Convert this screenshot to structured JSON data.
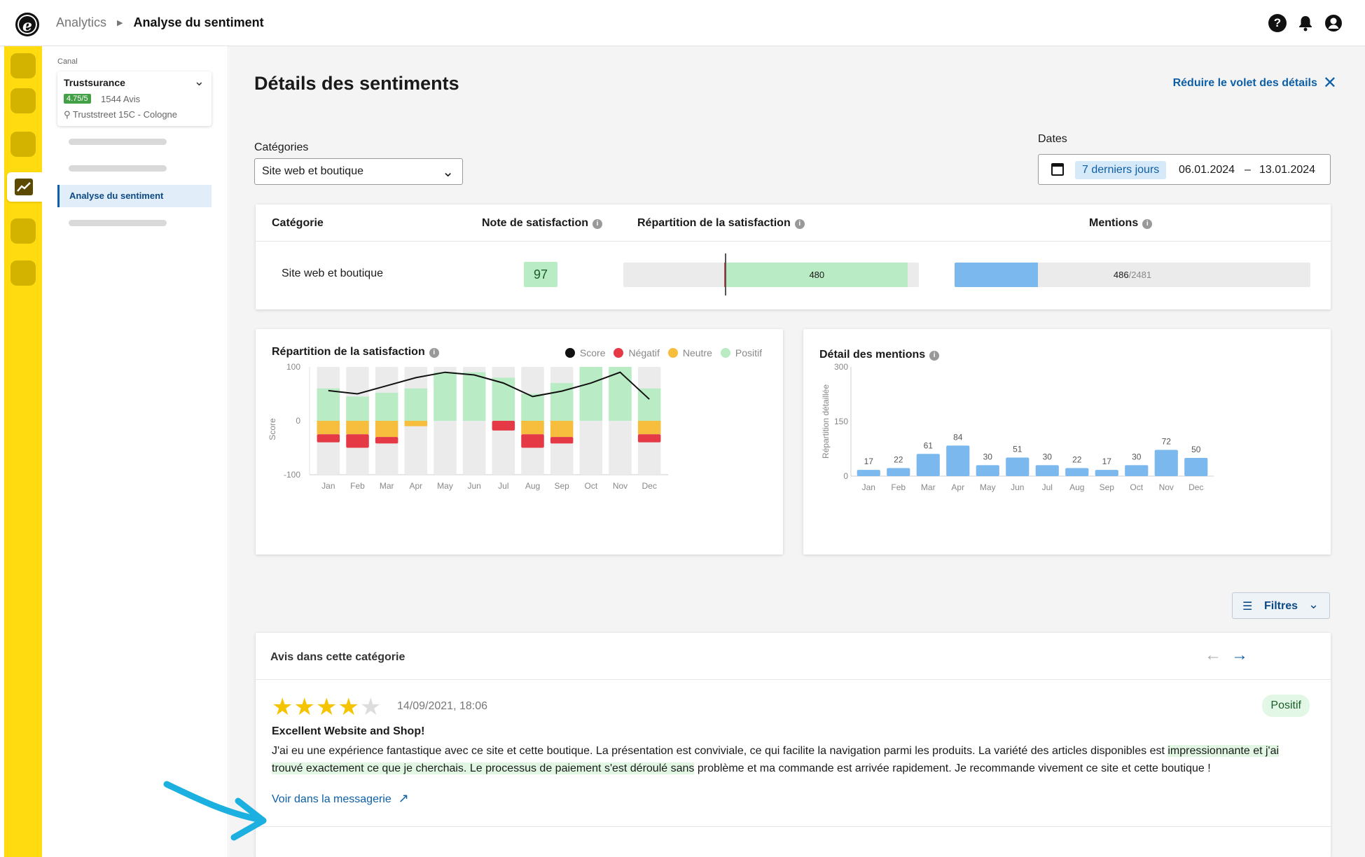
{
  "breadcrumb": {
    "parent": "Analytics",
    "current": "Analyse du sentiment"
  },
  "subnav": {
    "canal_label": "Canal",
    "canal": {
      "name": "Trustsurance",
      "rating": "4.75/5",
      "reviews": "1544 Avis",
      "address": "Truststreet 15C - Cologne"
    },
    "active_item": "Analyse du sentiment"
  },
  "page": {
    "title": "Détails des sentiments",
    "collapse_label": "Réduire le volet des détails",
    "categories_label": "Catégories",
    "category_selected": "Site web et boutique",
    "dates_label": "Dates",
    "date_preset": "7 derniers jours",
    "date_from": "06.01.2024",
    "date_sep": "–",
    "date_to": "13.01.2024"
  },
  "summary": {
    "headers": {
      "category": "Catégorie",
      "score": "Note de satisfaction",
      "distribution": "Répartition de la satisfaction",
      "mentions": "Mentions"
    },
    "row": {
      "category": "Site web et boutique",
      "score": "97",
      "positive_count": "480",
      "mentions": "486",
      "mentions_total": "/2481"
    },
    "distribution_fraction": {
      "negative": 0.01,
      "positive": 0.99
    },
    "mentions_fraction": 0.196
  },
  "chart1": {
    "title": "Répartition de la satisfaction",
    "legend": [
      "Score",
      "Négatif",
      "Neutre",
      "Positif"
    ],
    "colors": {
      "score": "#111111",
      "negative": "#e53946",
      "neutral": "#f7bd3d",
      "positive": "#b9ecc4",
      "bg": "#ebebeb"
    }
  },
  "chart_data": [
    {
      "type": "bar",
      "title": "Répartition de la satisfaction",
      "ylabel": "Score",
      "ylim": [
        -100,
        100
      ],
      "yticks": [
        "100",
        "0",
        "-100"
      ],
      "categories": [
        "Jan",
        "Feb",
        "Mar",
        "Apr",
        "May",
        "Jun",
        "Jul",
        "Aug",
        "Sep",
        "Oct",
        "Nov",
        "Dec"
      ],
      "series": [
        {
          "name": "Positif",
          "values": [
            60,
            45,
            52,
            60,
            90,
            90,
            80,
            50,
            70,
            100,
            100,
            60
          ]
        },
        {
          "name": "Neutre",
          "values": [
            -25,
            -25,
            -30,
            -10,
            0,
            0,
            0,
            -25,
            -30,
            0,
            0,
            -25
          ]
        },
        {
          "name": "Négatif",
          "values": [
            -15,
            -25,
            -12,
            0,
            0,
            0,
            -18,
            -25,
            -12,
            0,
            0,
            -15
          ]
        },
        {
          "name": "Score",
          "values": [
            56,
            50,
            65,
            80,
            90,
            85,
            70,
            45,
            55,
            70,
            90,
            40
          ]
        }
      ]
    },
    {
      "type": "bar",
      "title": "Détail des mentions",
      "ylabel": "Répartition détaillée",
      "ylim": [
        0,
        300
      ],
      "yticks": [
        "300",
        "150",
        "0"
      ],
      "categories": [
        "Jan",
        "Feb",
        "Mar",
        "Apr",
        "May",
        "Jun",
        "Jul",
        "Aug",
        "Sep",
        "Oct",
        "Nov",
        "Dec"
      ],
      "values": [
        17,
        22,
        61,
        84,
        30,
        51,
        30,
        22,
        17,
        30,
        72,
        50
      ],
      "color": "#7ab8ee"
    }
  ],
  "chart2": {
    "title": "Détail des mentions"
  },
  "filters": {
    "label": "Filtres"
  },
  "reviews": {
    "heading": "Avis dans cette catégorie",
    "item": {
      "stars_filled": 4,
      "stars_total": 5,
      "date": "14/09/2021, 18:06",
      "sentiment": "Positif",
      "title": "Excellent Website and Shop!",
      "body_a": "J'ai eu une expérience fantastique avec ce site et cette boutique. La présentation est conviviale, ce qui facilite la navigation parmi les produits. La variété des articles disponibles est ",
      "body_highlight": "impressionnante et j'ai trouvé exactement ce que je cherchais. Le processus de paiement s'est déroulé sans",
      "body_b": " problème et ma commande est arrivée rapidement. Je recommande vivement ce site et cette boutique !",
      "link": "Voir dans la messagerie"
    }
  },
  "icons": {
    "logo": "e",
    "help": "?",
    "bell": "bell-icon",
    "user": "user-icon"
  }
}
